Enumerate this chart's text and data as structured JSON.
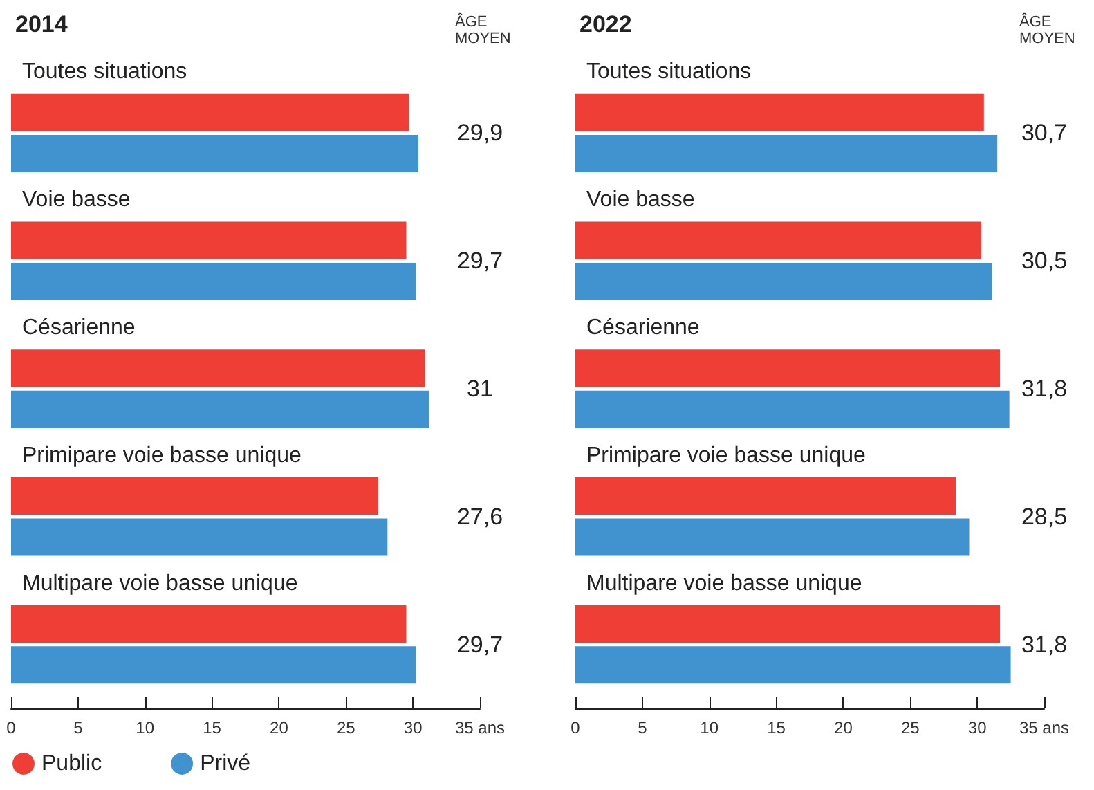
{
  "chart_data": [
    {
      "type": "bar",
      "orientation": "horizontal",
      "title": "2014",
      "categories": [
        "Toutes situations",
        "Voie basse",
        "Césarienne",
        "Primipare voie basse unique",
        "Multipare voie basse unique"
      ],
      "series": [
        {
          "name": "Public",
          "color": "#ee3e36",
          "values": [
            29.7,
            29.5,
            30.9,
            27.4,
            29.5
          ]
        },
        {
          "name": "Privé",
          "color": "#4093cf",
          "values": [
            30.4,
            30.2,
            31.2,
            28.1,
            30.2
          ]
        }
      ],
      "xlim": [
        0,
        35
      ],
      "xticks": [
        0,
        5,
        10,
        15,
        20,
        25,
        30,
        {
          "value": 35,
          "label": "35 ans"
        }
      ],
      "annotations": [
        "ÂGE MOYEN",
        "29,9",
        "29,7",
        "31",
        "27,6",
        "29,7"
      ],
      "grid": false,
      "legend": "bottom left"
    },
    {
      "type": "bar",
      "orientation": "horizontal",
      "title": "2022",
      "categories": [
        "Toutes situations",
        "Voie basse",
        "Césarienne",
        "Primipare voie basse unique",
        "Multipare voie basse unique"
      ],
      "series": [
        {
          "color": "#ee3e36",
          "values": [
            30.5,
            30.3,
            31.7,
            28.4,
            31.7
          ]
        },
        {
          "color": "#4093cf",
          "values": [
            31.5,
            31.1,
            32.4,
            29.4,
            32.5
          ]
        }
      ],
      "xlim": [
        0,
        35
      ],
      "xticks": [
        0,
        5,
        10,
        15,
        20,
        25,
        30,
        {
          "value": 35,
          "label": "35 ans"
        }
      ],
      "annotations": [
        "ÂGE MOYEN",
        "30,7",
        "30,5",
        "31,8",
        "28,5",
        "31,8"
      ],
      "grid": false,
      "legend": false
    }
  ]
}
